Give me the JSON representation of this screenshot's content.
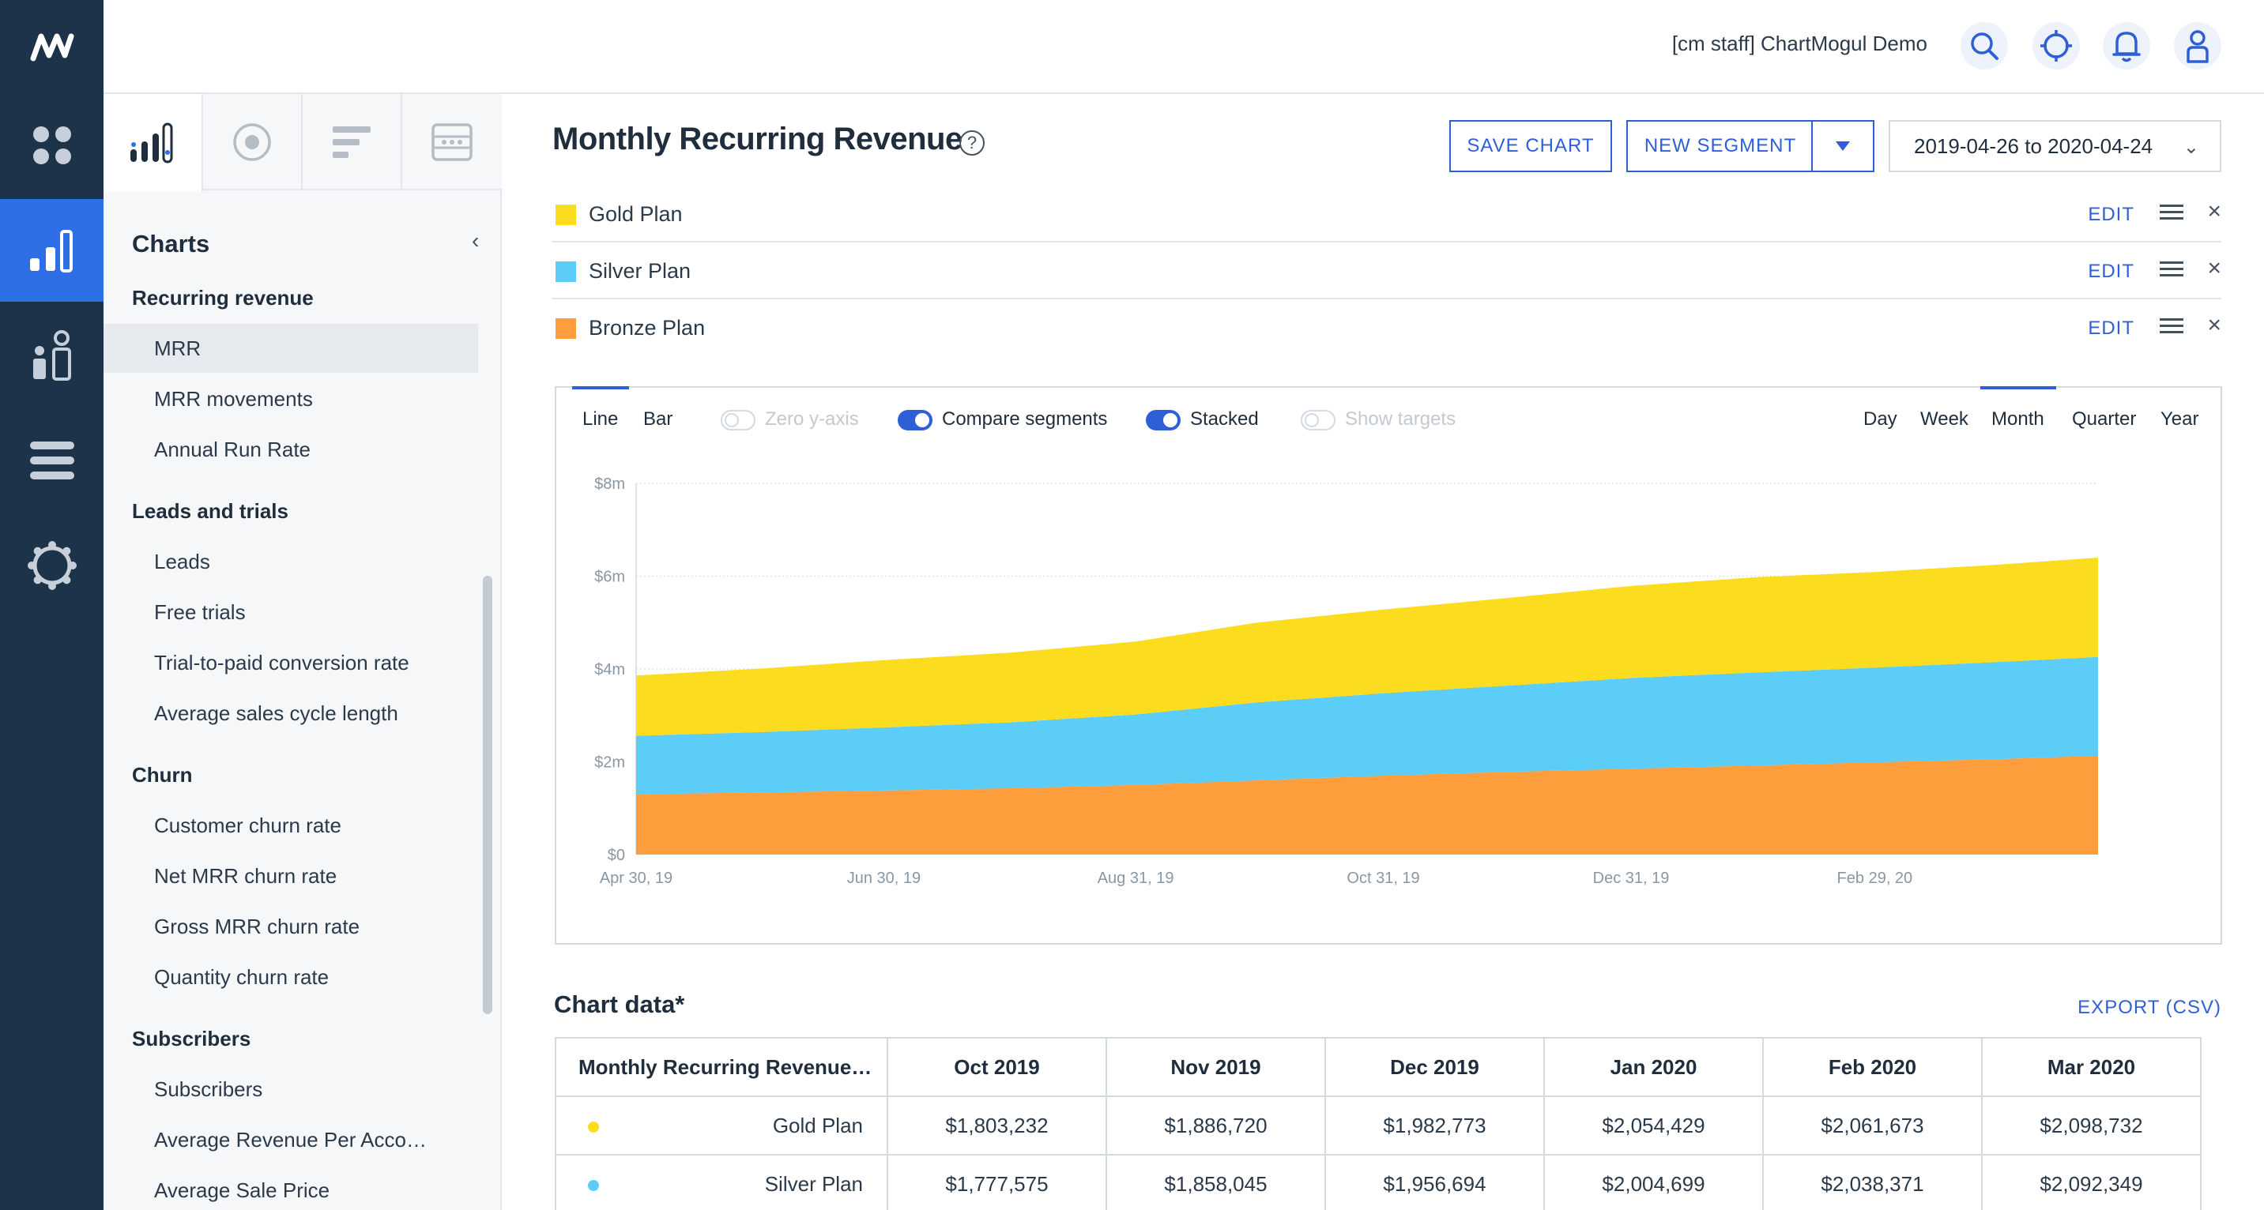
{
  "app": {
    "account_name": "[cm staff] ChartMogul Demo"
  },
  "rail": {
    "items": [
      "dashboard",
      "charts",
      "customers",
      "lists",
      "settings"
    ],
    "active": "charts"
  },
  "sidebar": {
    "title": "Charts",
    "groups": [
      {
        "label": "Recurring revenue",
        "items": [
          "MRR",
          "MRR movements",
          "Annual Run Rate"
        ]
      },
      {
        "label": "Leads and trials",
        "items": [
          "Leads",
          "Free trials",
          "Trial-to-paid conversion rate",
          "Average sales cycle length"
        ]
      },
      {
        "label": "Churn",
        "items": [
          "Customer churn rate",
          "Net MRR churn rate",
          "Gross MRR churn rate",
          "Quantity churn rate"
        ]
      },
      {
        "label": "Subscribers",
        "items": [
          "Subscribers",
          "Average Revenue Per Acco…",
          "Average Sale Price"
        ]
      }
    ],
    "active_item": "MRR"
  },
  "header": {
    "title": "Monthly Recurring Revenue",
    "save_chart": "SAVE CHART",
    "new_segment": "NEW SEGMENT",
    "date_range": "2019-04-26 to 2020-04-24"
  },
  "segments": [
    {
      "name": "Gold Plan",
      "color": "#fcdc1f",
      "edit": "EDIT"
    },
    {
      "name": "Silver Plan",
      "color": "#5bcdf7",
      "edit": "EDIT"
    },
    {
      "name": "Bronze Plan",
      "color": "#fd9d3c",
      "edit": "EDIT"
    }
  ],
  "chart_controls": {
    "line": "Line",
    "bar": "Bar",
    "zero_y_axis": "Zero y-axis",
    "compare_segments": "Compare segments",
    "stacked": "Stacked",
    "show_targets": "Show targets",
    "day": "Day",
    "week": "Week",
    "month": "Month",
    "quarter": "Quarter",
    "year": "Year",
    "chart_type_selected": "Line",
    "interval_selected": "Month",
    "zero_y_axis_on": false,
    "compare_segments_on": true,
    "stacked_on": true,
    "show_targets_on": false
  },
  "chart_data": {
    "type": "area",
    "stacked": true,
    "x": [
      "2019-04-30",
      "2019-05-31",
      "2019-06-30",
      "2019-07-31",
      "2019-08-31",
      "2019-09-30",
      "2019-10-31",
      "2019-11-30",
      "2019-12-31",
      "2020-01-31",
      "2020-02-29",
      "2020-03-31",
      "2020-04-24"
    ],
    "x_tick_labels": [
      "Apr 30, 19",
      "Jun 30, 19",
      "Aug 31, 19",
      "Oct 31, 19",
      "Dec 31, 19",
      "Feb 29, 20"
    ],
    "y_tick_labels": [
      "$0",
      "$2m",
      "$4m",
      "$6m",
      "$8m"
    ],
    "ylim": [
      0,
      8000000
    ],
    "grid": true,
    "series": [
      {
        "name": "Bronze Plan",
        "color": "#fd9d3c",
        "values": [
          1300000,
          1340000,
          1380000,
          1430000,
          1500000,
          1600000,
          1700000,
          1780000,
          1850000,
          1920000,
          1990000,
          2060000,
          2130000
        ]
      },
      {
        "name": "Silver Plan",
        "color": "#5bcdf7",
        "values": [
          1260000,
          1300000,
          1360000,
          1420000,
          1520000,
          1680000,
          1777575,
          1858045,
          1956694,
          2004699,
          2038371,
          2092349,
          2130000
        ]
      },
      {
        "name": "Gold Plan",
        "color": "#fcdc1f",
        "values": [
          1300000,
          1370000,
          1450000,
          1500000,
          1570000,
          1720000,
          1803232,
          1886720,
          1982773,
          2054429,
          2061673,
          2098732,
          2140000
        ]
      }
    ]
  },
  "table": {
    "title": "Chart data*",
    "export": "EXPORT (CSV)",
    "header_first": "Monthly Recurring Revenue…",
    "columns": [
      "Oct 2019",
      "Nov 2019",
      "Dec 2019",
      "Jan 2020",
      "Feb 2020",
      "Mar 2020"
    ],
    "rows": [
      {
        "name": "Gold Plan",
        "color": "#fcdc1f",
        "cells": [
          "$1,803,232",
          "$1,886,720",
          "$1,982,773",
          "$2,054,429",
          "$2,061,673",
          "$2,098,732"
        ]
      },
      {
        "name": "Silver Plan",
        "color": "#5bcdf7",
        "cells": [
          "$1,777,575",
          "$1,858,045",
          "$1,956,694",
          "$2,004,699",
          "$2,038,371",
          "$2,092,349"
        ]
      }
    ]
  }
}
